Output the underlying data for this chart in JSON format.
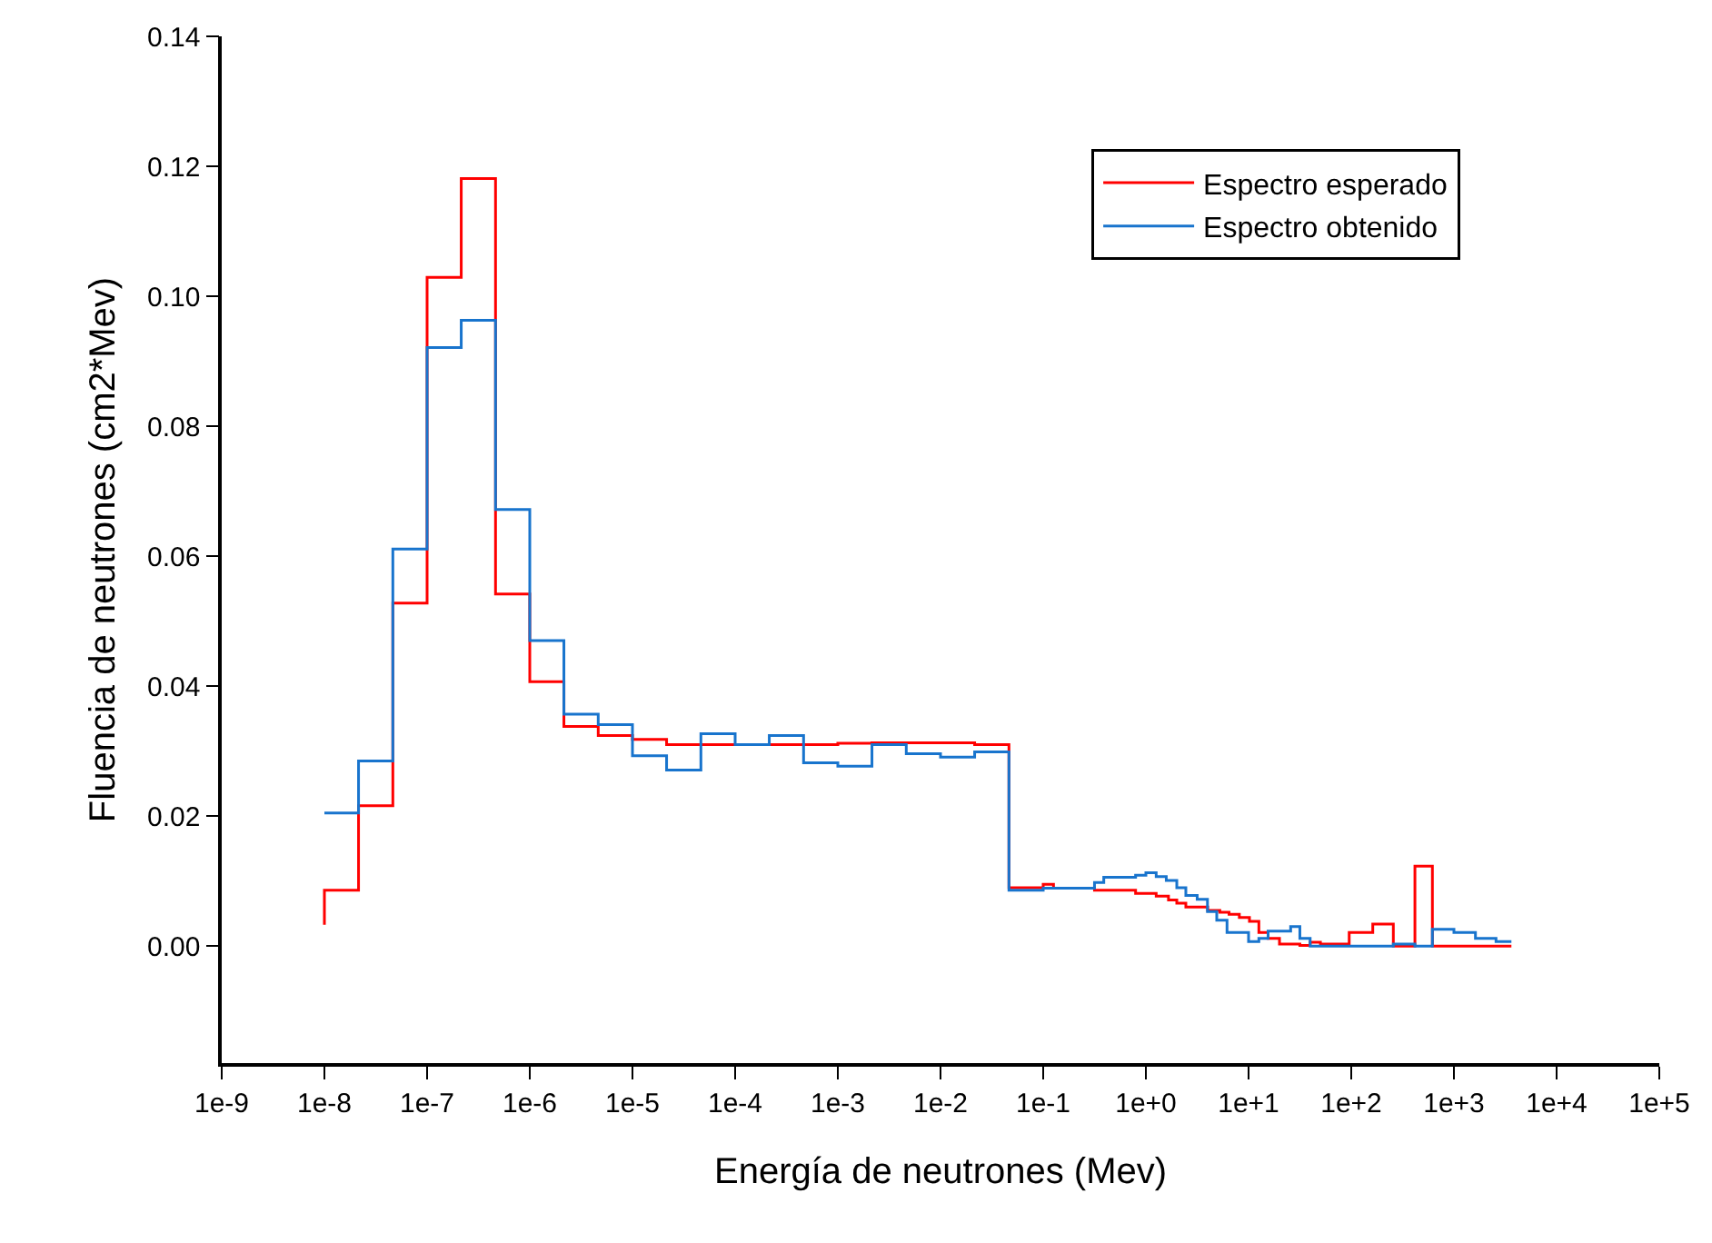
{
  "chart_data": {
    "type": "step",
    "xlabel": "Energía de neutrones (Mev)",
    "ylabel": "Fluencia de neutrones (cm2*Mev)",
    "log": "x",
    "xlim": [
      1e-09,
      100000.0
    ],
    "xticks": [
      {
        "value": 1e-09,
        "label": "1e-9"
      },
      {
        "value": 1e-08,
        "label": "1e-8"
      },
      {
        "value": 1e-07,
        "label": "1e-7"
      },
      {
        "value": 1e-06,
        "label": "1e-6"
      },
      {
        "value": 1e-05,
        "label": "1e-5"
      },
      {
        "value": 0.0001,
        "label": "1e-4"
      },
      {
        "value": 0.001,
        "label": "1e-3"
      },
      {
        "value": 0.01,
        "label": "1e-2"
      },
      {
        "value": 0.1,
        "label": "1e-1"
      },
      {
        "value": 1,
        "label": "1e+0"
      },
      {
        "value": 10,
        "label": "1e+1"
      },
      {
        "value": 100,
        "label": "1e+2"
      },
      {
        "value": 1000,
        "label": "1e+3"
      },
      {
        "value": 10000,
        "label": "1e+4"
      },
      {
        "value": 100000,
        "label": "1e+5"
      }
    ],
    "ylim": [
      -0.018,
      0.14
    ],
    "yticks": [
      {
        "value": 0,
        "label": "0.00"
      },
      {
        "value": 0.02,
        "label": "0.02"
      },
      {
        "value": 0.04,
        "label": "0.04"
      },
      {
        "value": 0.06,
        "label": "0.06"
      },
      {
        "value": 0.08,
        "label": "0.08"
      },
      {
        "value": 0.1,
        "label": "0.10"
      },
      {
        "value": 0.12,
        "label": "0.12"
      },
      {
        "value": 0.14,
        "label": "0.14"
      }
    ],
    "legend": "top right",
    "marker": "none",
    "line_style": "solid",
    "series": [
      {
        "name": "Espectro esperado",
        "color": "#ff0000",
        "x": [
          1e-08,
          1e-08,
          2.15e-08,
          4.64e-08,
          1e-07,
          2.15e-07,
          4.64e-07,
          1e-06,
          2.15e-06,
          4.64e-06,
          1e-05,
          2.15e-05,
          4.64e-05,
          0.0001,
          0.000215,
          0.000464,
          0.001,
          0.00215,
          0.00464,
          0.01,
          0.0215,
          0.0464,
          0.1,
          0.126,
          0.316,
          0.794,
          1.26,
          1.66,
          2.0,
          2.45,
          4.0,
          5.25,
          6.46,
          8.13,
          10.2,
          12.6,
          15.5,
          20,
          31.6,
          39.8,
          50.1,
          95.5,
          162,
          257,
          417,
          617,
          3630
        ],
        "values": [
          0.0033,
          0.0086,
          0.0216,
          0.0528,
          0.1029,
          0.1181,
          0.0542,
          0.0407,
          0.0338,
          0.0324,
          0.0318,
          0.031,
          0.031,
          0.031,
          0.031,
          0.031,
          0.0312,
          0.0313,
          0.0313,
          0.0313,
          0.031,
          0.009,
          0.0095,
          0.0089,
          0.0086,
          0.0081,
          0.0077,
          0.0071,
          0.0066,
          0.006,
          0.0055,
          0.0052,
          0.0049,
          0.0044,
          0.0038,
          0.0021,
          0.0012,
          0.0003,
          0.0001,
          0.0006,
          0.0003,
          0.0021,
          0.0034,
          0.0,
          0.0123,
          0.0,
          0.0
        ]
      },
      {
        "name": "Espectro obtenido",
        "color": "#1874cd",
        "x": [
          1e-08,
          2.15e-08,
          4.64e-08,
          1e-07,
          2.15e-07,
          4.64e-07,
          1e-06,
          2.15e-06,
          4.64e-06,
          1e-05,
          2.15e-05,
          4.64e-05,
          0.0001,
          0.000215,
          0.000464,
          0.001,
          0.00215,
          0.00464,
          0.01,
          0.0215,
          0.0464,
          0.1,
          0.316,
          0.389,
          0.794,
          1.0,
          1.26,
          1.58,
          2.0,
          2.45,
          3.16,
          3.98,
          4.9,
          6.17,
          10,
          12.6,
          15.5,
          25.7,
          31.6,
          39.8,
          257,
          417,
          617,
          1000,
          1620,
          2570,
          3630
        ],
        "values": [
          0.0205,
          0.0285,
          0.0611,
          0.0921,
          0.0963,
          0.0672,
          0.047,
          0.0357,
          0.0341,
          0.0293,
          0.0271,
          0.0327,
          0.031,
          0.0324,
          0.0282,
          0.0277,
          0.031,
          0.0296,
          0.0291,
          0.0299,
          0.0086,
          0.0089,
          0.0098,
          0.0106,
          0.0109,
          0.0113,
          0.0107,
          0.0101,
          0.009,
          0.0078,
          0.0072,
          0.0053,
          0.004,
          0.0021,
          0.0007,
          0.0012,
          0.0023,
          0.003,
          0.0012,
          0.0,
          0.0003,
          0.0,
          0.0026,
          0.0021,
          0.0012,
          0.0007,
          0.0007
        ]
      }
    ]
  }
}
